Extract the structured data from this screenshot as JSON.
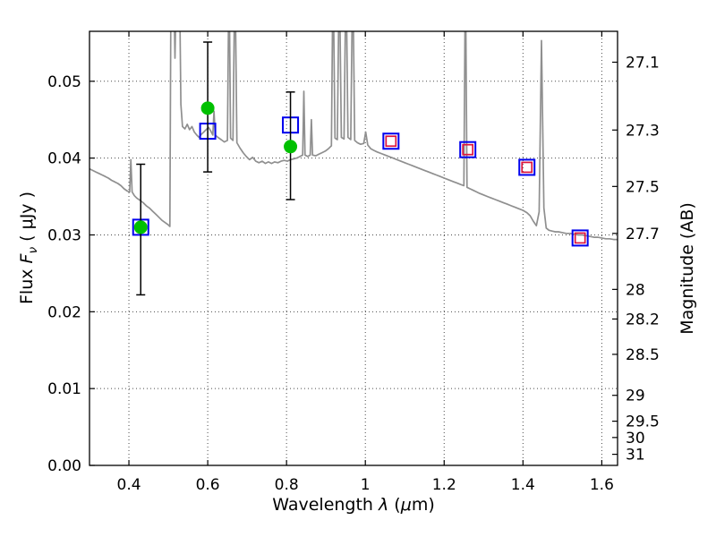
{
  "chart_data": {
    "type": "line",
    "title": "",
    "description": "Galaxy SED: gray model spectrum with emission lines, photometric points overlaid",
    "x_axis": {
      "min": 0.3,
      "max": 1.64,
      "label_parts": {
        "prefix": "Wavelength  ",
        "lambda": "λ",
        "mid": " (",
        "mu": "μ",
        "suffix": "m)"
      },
      "ticks": [
        {
          "value": 0.4,
          "label": "0.4"
        },
        {
          "value": 0.6,
          "label": "0.6"
        },
        {
          "value": 0.8,
          "label": "0.8"
        },
        {
          "value": 1.0,
          "label": "1"
        },
        {
          "value": 1.2,
          "label": "1.2"
        },
        {
          "value": 1.4,
          "label": "1.4"
        },
        {
          "value": 1.6,
          "label": "1.6"
        }
      ]
    },
    "y_axis_left": {
      "min": 0.0,
      "max": 0.0565,
      "label_parts": {
        "prefix": "Flux  ",
        "F": "F",
        "nu": "ν",
        "suffix": " ( μJy )"
      },
      "ticks": [
        {
          "value": 0.0,
          "label": "0.00"
        },
        {
          "value": 0.01,
          "label": "0.01"
        },
        {
          "value": 0.02,
          "label": "0.02"
        },
        {
          "value": 0.03,
          "label": "0.03"
        },
        {
          "value": 0.04,
          "label": "0.04"
        },
        {
          "value": 0.05,
          "label": "0.05"
        }
      ]
    },
    "y_axis_right": {
      "label": "Magnitude (AB)",
      "zeropoint": 23.9,
      "ticks": [
        {
          "mag": 27.1,
          "label": "27.1"
        },
        {
          "mag": 27.3,
          "label": "27.3"
        },
        {
          "mag": 27.5,
          "label": "27.5"
        },
        {
          "mag": 27.7,
          "label": "27.7"
        },
        {
          "mag": 28.0,
          "label": "28"
        },
        {
          "mag": 28.2,
          "label": "28.2"
        },
        {
          "mag": 28.5,
          "label": "28.5"
        },
        {
          "mag": 29.0,
          "label": "29"
        },
        {
          "mag": 29.5,
          "label": "29.5"
        },
        {
          "mag": 30.0,
          "label": "30"
        },
        {
          "mag": 31.0,
          "label": "31"
        }
      ]
    },
    "grid": true,
    "spectrum": {
      "color": "#8f8f8f",
      "points": [
        [
          0.3,
          0.0386
        ],
        [
          0.308,
          0.0384
        ],
        [
          0.316,
          0.0382
        ],
        [
          0.324,
          0.038
        ],
        [
          0.332,
          0.0378
        ],
        [
          0.34,
          0.0376
        ],
        [
          0.348,
          0.0374
        ],
        [
          0.356,
          0.0371
        ],
        [
          0.364,
          0.0369
        ],
        [
          0.372,
          0.0367
        ],
        [
          0.38,
          0.0364
        ],
        [
          0.388,
          0.036
        ],
        [
          0.396,
          0.0357
        ],
        [
          0.402,
          0.0356
        ],
        [
          0.405,
          0.0398
        ],
        [
          0.408,
          0.0356
        ],
        [
          0.414,
          0.0351
        ],
        [
          0.42,
          0.0348
        ],
        [
          0.428,
          0.0345
        ],
        [
          0.436,
          0.0342
        ],
        [
          0.444,
          0.0338
        ],
        [
          0.452,
          0.0335
        ],
        [
          0.46,
          0.0331
        ],
        [
          0.468,
          0.0327
        ],
        [
          0.476,
          0.0323
        ],
        [
          0.484,
          0.0319
        ],
        [
          0.492,
          0.0316
        ],
        [
          0.5,
          0.0313
        ],
        [
          0.504,
          0.0311
        ],
        [
          0.507,
          0.065
        ],
        [
          0.513,
          0.065
        ],
        [
          0.517,
          0.053
        ],
        [
          0.521,
          0.065
        ],
        [
          0.528,
          0.065
        ],
        [
          0.532,
          0.047
        ],
        [
          0.536,
          0.0441
        ],
        [
          0.542,
          0.0438
        ],
        [
          0.548,
          0.0444
        ],
        [
          0.554,
          0.0437
        ],
        [
          0.56,
          0.0441
        ],
        [
          0.566,
          0.0434
        ],
        [
          0.572,
          0.043
        ],
        [
          0.578,
          0.0427
        ],
        [
          0.584,
          0.0431
        ],
        [
          0.59,
          0.0434
        ],
        [
          0.596,
          0.0437
        ],
        [
          0.602,
          0.044
        ],
        [
          0.608,
          0.0435
        ],
        [
          0.613,
          0.043
        ],
        [
          0.616,
          0.0461
        ],
        [
          0.619,
          0.043
        ],
        [
          0.626,
          0.0427
        ],
        [
          0.634,
          0.0424
        ],
        [
          0.642,
          0.0421
        ],
        [
          0.65,
          0.0423
        ],
        [
          0.654,
          0.065
        ],
        [
          0.658,
          0.0426
        ],
        [
          0.664,
          0.0423
        ],
        [
          0.669,
          0.065
        ],
        [
          0.674,
          0.042
        ],
        [
          0.682,
          0.0413
        ],
        [
          0.69,
          0.0407
        ],
        [
          0.698,
          0.0402
        ],
        [
          0.706,
          0.0398
        ],
        [
          0.714,
          0.0401
        ],
        [
          0.722,
          0.0396
        ],
        [
          0.73,
          0.0394
        ],
        [
          0.738,
          0.0396
        ],
        [
          0.746,
          0.0393
        ],
        [
          0.754,
          0.0395
        ],
        [
          0.762,
          0.0393
        ],
        [
          0.77,
          0.0395
        ],
        [
          0.778,
          0.0394
        ],
        [
          0.786,
          0.0396
        ],
        [
          0.794,
          0.0397
        ],
        [
          0.802,
          0.0396
        ],
        [
          0.81,
          0.0398
        ],
        [
          0.818,
          0.0399
        ],
        [
          0.826,
          0.04
        ],
        [
          0.834,
          0.0402
        ],
        [
          0.841,
          0.0404
        ],
        [
          0.844,
          0.0487
        ],
        [
          0.847,
          0.0404
        ],
        [
          0.854,
          0.0402
        ],
        [
          0.86,
          0.0404
        ],
        [
          0.863,
          0.045
        ],
        [
          0.866,
          0.0404
        ],
        [
          0.874,
          0.0403
        ],
        [
          0.882,
          0.0405
        ],
        [
          0.89,
          0.0407
        ],
        [
          0.898,
          0.0409
        ],
        [
          0.906,
          0.0412
        ],
        [
          0.914,
          0.0416
        ],
        [
          0.918,
          0.065
        ],
        [
          0.923,
          0.0426
        ],
        [
          0.929,
          0.0424
        ],
        [
          0.934,
          0.065
        ],
        [
          0.939,
          0.0427
        ],
        [
          0.946,
          0.0425
        ],
        [
          0.951,
          0.065
        ],
        [
          0.956,
          0.0427
        ],
        [
          0.963,
          0.0424
        ],
        [
          0.968,
          0.065
        ],
        [
          0.973,
          0.0423
        ],
        [
          0.98,
          0.042
        ],
        [
          0.988,
          0.0418
        ],
        [
          0.996,
          0.0419
        ],
        [
          1.001,
          0.0434
        ],
        [
          1.006,
          0.0417
        ],
        [
          1.014,
          0.0412
        ],
        [
          1.022,
          0.041
        ],
        [
          1.03,
          0.0408
        ],
        [
          1.04,
          0.0406
        ],
        [
          1.05,
          0.0404
        ],
        [
          1.06,
          0.0402
        ],
        [
          1.07,
          0.04
        ],
        [
          1.08,
          0.0398
        ],
        [
          1.09,
          0.0396
        ],
        [
          1.1,
          0.0394
        ],
        [
          1.11,
          0.0392
        ],
        [
          1.12,
          0.039
        ],
        [
          1.13,
          0.0388
        ],
        [
          1.14,
          0.0386
        ],
        [
          1.15,
          0.0384
        ],
        [
          1.16,
          0.0382
        ],
        [
          1.17,
          0.038
        ],
        [
          1.18,
          0.0378
        ],
        [
          1.19,
          0.0376
        ],
        [
          1.2,
          0.0374
        ],
        [
          1.21,
          0.0372
        ],
        [
          1.22,
          0.037
        ],
        [
          1.23,
          0.0368
        ],
        [
          1.24,
          0.0366
        ],
        [
          1.25,
          0.0364
        ],
        [
          1.254,
          0.065
        ],
        [
          1.258,
          0.0362
        ],
        [
          1.266,
          0.036
        ],
        [
          1.274,
          0.0358
        ],
        [
          1.282,
          0.0356
        ],
        [
          1.29,
          0.0354
        ],
        [
          1.3,
          0.0352
        ],
        [
          1.31,
          0.035
        ],
        [
          1.32,
          0.0348
        ],
        [
          1.33,
          0.0346
        ],
        [
          1.34,
          0.0344
        ],
        [
          1.35,
          0.0342
        ],
        [
          1.36,
          0.034
        ],
        [
          1.37,
          0.0338
        ],
        [
          1.38,
          0.0336
        ],
        [
          1.39,
          0.0334
        ],
        [
          1.4,
          0.0332
        ],
        [
          1.41,
          0.0329
        ],
        [
          1.418,
          0.0325
        ],
        [
          1.426,
          0.0318
        ],
        [
          1.434,
          0.0312
        ],
        [
          1.441,
          0.033
        ],
        [
          1.447,
          0.0553
        ],
        [
          1.453,
          0.0335
        ],
        [
          1.459,
          0.0309
        ],
        [
          1.466,
          0.0306
        ],
        [
          1.474,
          0.0305
        ],
        [
          1.482,
          0.0304
        ],
        [
          1.49,
          0.0304
        ],
        [
          1.5,
          0.0303
        ],
        [
          1.51,
          0.0302
        ],
        [
          1.52,
          0.0302
        ],
        [
          1.53,
          0.0301
        ],
        [
          1.54,
          0.03
        ],
        [
          1.55,
          0.03
        ],
        [
          1.56,
          0.0299
        ],
        [
          1.57,
          0.0298
        ],
        [
          1.58,
          0.0297
        ],
        [
          1.59,
          0.0297
        ],
        [
          1.6,
          0.0296
        ],
        [
          1.61,
          0.0295
        ],
        [
          1.62,
          0.0295
        ],
        [
          1.63,
          0.0294
        ],
        [
          1.64,
          0.0294
        ]
      ]
    },
    "photometry": {
      "series": [
        {
          "name": "photometry-blue-squares",
          "marker": "square-open",
          "color": "#0000ee",
          "size": 17,
          "stroke": 2,
          "points": [
            {
              "x": 0.43,
              "y": 0.031
            },
            {
              "x": 0.6,
              "y": 0.0435
            },
            {
              "x": 0.81,
              "y": 0.0443
            },
            {
              "x": 1.065,
              "y": 0.0422
            },
            {
              "x": 1.26,
              "y": 0.0411
            },
            {
              "x": 1.41,
              "y": 0.0388
            },
            {
              "x": 1.545,
              "y": 0.0296
            }
          ]
        },
        {
          "name": "photometry-red-squares",
          "marker": "square-open",
          "color": "#dc143c",
          "size": 11,
          "stroke": 1.7,
          "points": [
            {
              "x": 1.065,
              "y": 0.0422
            },
            {
              "x": 1.26,
              "y": 0.0411
            },
            {
              "x": 1.41,
              "y": 0.0388
            },
            {
              "x": 1.545,
              "y": 0.0296
            }
          ]
        },
        {
          "name": "photometry-green-circles",
          "marker": "circle",
          "color": "#00c000",
          "size": 15,
          "stroke": 0,
          "points": [
            {
              "x": 0.43,
              "y": 0.031,
              "err_lo": 0.0222,
              "err_hi": 0.0392
            },
            {
              "x": 0.6,
              "y": 0.0465,
              "err_lo": 0.0382,
              "err_hi": 0.0551
            },
            {
              "x": 0.81,
              "y": 0.0415,
              "err_lo": 0.0346,
              "err_hi": 0.0486
            }
          ]
        }
      ]
    }
  }
}
